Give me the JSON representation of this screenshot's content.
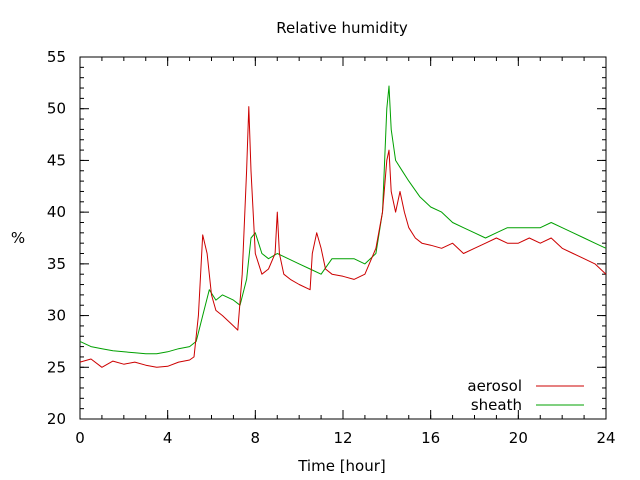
{
  "chart_data": {
    "type": "line",
    "title": "Relative humidity",
    "xlabel": "Time [hour]",
    "ylabel": "%",
    "xlim": [
      0,
      24
    ],
    "ylim": [
      20,
      55
    ],
    "x_ticks": [
      0,
      4,
      8,
      12,
      16,
      20,
      24
    ],
    "y_ticks": [
      20,
      25,
      30,
      35,
      40,
      45,
      50,
      55
    ],
    "x_minor_step": 1,
    "y_minor_step": 1,
    "grid": false,
    "legend_position": "bottom-right",
    "series": [
      {
        "name": "aerosol",
        "color": "#cc0000",
        "x": [
          0,
          0.5,
          1,
          1.5,
          2,
          2.5,
          3,
          3.5,
          4,
          4.5,
          5,
          5.2,
          5.4,
          5.6,
          5.8,
          6,
          6.2,
          6.5,
          7,
          7.2,
          7.4,
          7.6,
          7.7,
          7.8,
          8,
          8.3,
          8.6,
          8.9,
          9.0,
          9.1,
          9.3,
          9.6,
          10,
          10.5,
          10.6,
          10.8,
          11,
          11.2,
          11.5,
          12,
          12.5,
          13,
          13.5,
          13.8,
          14,
          14.1,
          14.2,
          14.4,
          14.6,
          14.8,
          15,
          15.3,
          15.6,
          16,
          16.5,
          17,
          17.5,
          18,
          18.5,
          19,
          19.5,
          20,
          20.5,
          21,
          21.5,
          22,
          22.5,
          23,
          23.5,
          24
        ],
        "y": [
          25.5,
          25.8,
          25.0,
          25.6,
          25.3,
          25.5,
          25.2,
          25.0,
          25.1,
          25.5,
          25.7,
          26.0,
          30.0,
          37.8,
          36.0,
          32.0,
          30.5,
          30.0,
          29.0,
          28.6,
          34.0,
          44.0,
          50.2,
          44.0,
          36.0,
          34.0,
          34.5,
          36.0,
          40.0,
          36.0,
          34.0,
          33.5,
          33.0,
          32.5,
          36.0,
          38.0,
          36.5,
          34.5,
          34.0,
          33.8,
          33.5,
          34.0,
          36.5,
          40.0,
          45.0,
          46.0,
          42.0,
          40.0,
          42.0,
          40.0,
          38.5,
          37.5,
          37.0,
          36.8,
          36.5,
          37.0,
          36.0,
          36.5,
          37.0,
          37.5,
          37.0,
          37.0,
          37.5,
          37.0,
          37.5,
          36.5,
          36.0,
          35.5,
          35.0,
          34.0
        ]
      },
      {
        "name": "sheath",
        "color": "#00a000",
        "x": [
          0,
          0.5,
          1,
          1.5,
          2,
          2.5,
          3,
          3.5,
          4,
          4.5,
          5,
          5.3,
          5.6,
          5.9,
          6.2,
          6.5,
          7,
          7.3,
          7.6,
          7.8,
          8,
          8.3,
          8.6,
          9,
          9.5,
          10,
          10.5,
          11,
          11.5,
          12,
          12.5,
          13,
          13.5,
          13.8,
          14,
          14.1,
          14.2,
          14.4,
          14.7,
          15,
          15.5,
          16,
          16.5,
          17,
          17.5,
          18,
          18.5,
          19,
          19.5,
          20,
          20.5,
          21,
          21.5,
          22,
          22.5,
          23,
          23.5,
          24
        ],
        "y": [
          27.5,
          27.0,
          26.8,
          26.6,
          26.5,
          26.4,
          26.3,
          26.3,
          26.5,
          26.8,
          27.0,
          27.5,
          30.0,
          32.5,
          31.5,
          32.0,
          31.5,
          31.0,
          33.5,
          37.5,
          38.0,
          36.0,
          35.5,
          36.0,
          35.5,
          35.0,
          34.5,
          34.0,
          35.5,
          35.5,
          35.5,
          35.0,
          36.0,
          40.0,
          50.0,
          52.2,
          48.0,
          45.0,
          44.0,
          43.0,
          41.5,
          40.5,
          40.0,
          39.0,
          38.5,
          38.0,
          37.5,
          38.0,
          38.5,
          38.5,
          38.5,
          38.5,
          39.0,
          38.5,
          38.0,
          37.5,
          37.0,
          36.5
        ]
      }
    ]
  }
}
